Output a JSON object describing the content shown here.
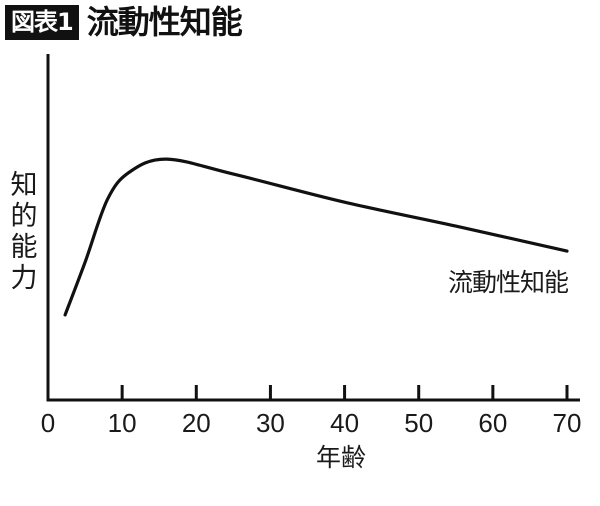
{
  "header": {
    "badge": "図表1",
    "title": "流動性知能"
  },
  "chart_data": {
    "type": "line",
    "title": "流動性知能",
    "figure_label": "図表1",
    "xlabel": "年齢",
    "ylabel": "知的能力",
    "xlim": [
      0,
      70
    ],
    "ylim": [
      0,
      100
    ],
    "x_ticks": [
      0,
      10,
      20,
      30,
      40,
      50,
      60,
      70
    ],
    "x_tick_labels": [
      "0",
      "10",
      "20",
      "30",
      "40",
      "50",
      "60",
      "70"
    ],
    "y_ticks": [],
    "grid": false,
    "legend": "none (inline series label at right end of curve)",
    "series": [
      {
        "name": "流動性知能",
        "x": [
          2.3,
          5,
          8,
          11,
          16,
          25,
          40,
          55,
          70
        ],
        "values": [
          24.8,
          40,
          58,
          66,
          69.7,
          65.4,
          57.3,
          50.4,
          43.2
        ]
      }
    ],
    "notes": "Y axis has no numeric scale; values are relative (0-100) estimated from pixel positions."
  },
  "axes": {
    "ylabel": "知的能力",
    "xlabel": "年齢",
    "x_ticks": [
      "0",
      "10",
      "20",
      "30",
      "40",
      "50",
      "60",
      "70"
    ]
  },
  "series_label": "流動性知能",
  "colors": {
    "line": "#111111",
    "badge_bg": "#111111",
    "badge_text": "#ffffff",
    "background": "#ffffff"
  }
}
